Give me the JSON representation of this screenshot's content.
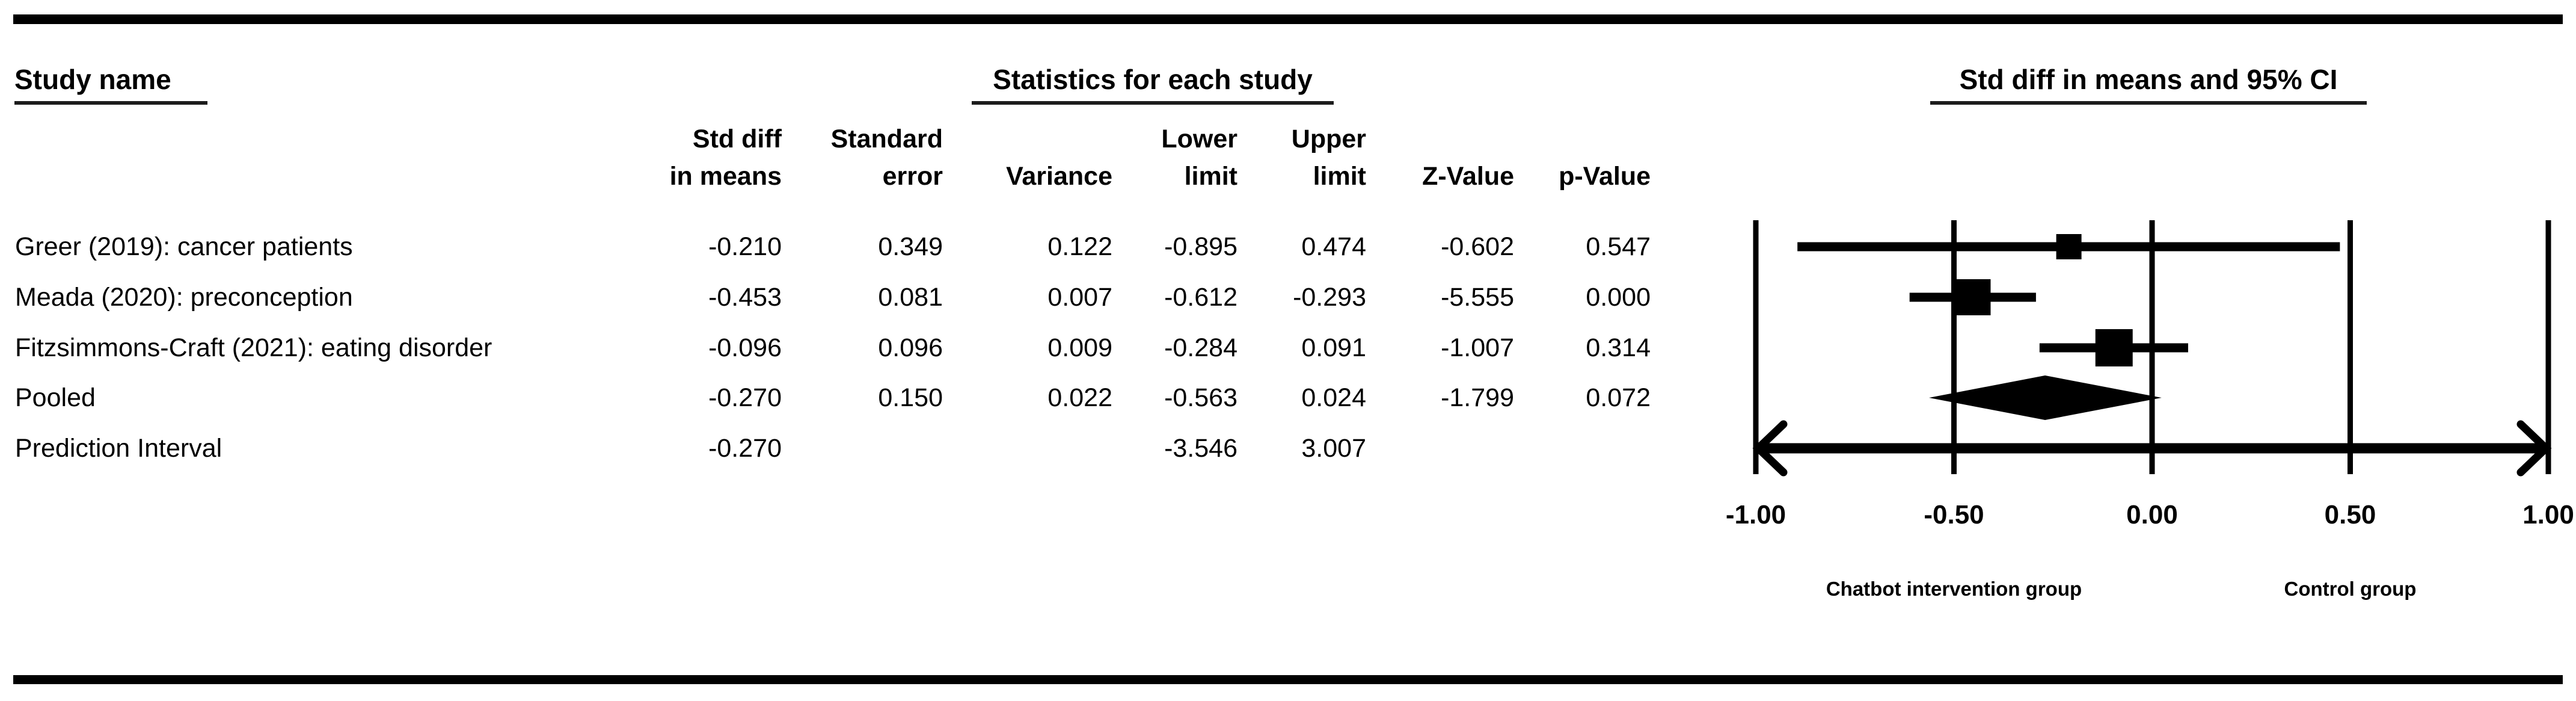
{
  "table": {
    "study_header": "Study name",
    "stats_header": "Statistics for each study",
    "columns": [
      {
        "line1": "Std diff",
        "line2": "in means"
      },
      {
        "line1": "Standard",
        "line2": "error"
      },
      {
        "line1": "",
        "line2": "Variance"
      },
      {
        "line1": "Lower",
        "line2": "limit"
      },
      {
        "line1": "Upper",
        "line2": "limit"
      },
      {
        "line1": "",
        "line2": "Z-Value"
      },
      {
        "line1": "",
        "line2": "p-Value"
      }
    ],
    "rows": [
      {
        "name": "Greer (2019): cancer patients",
        "cells": [
          "-0.210",
          "0.349",
          "0.122",
          "-0.895",
          "0.474",
          "-0.602",
          "0.547"
        ]
      },
      {
        "name": "Meada (2020): preconception",
        "cells": [
          "-0.453",
          "0.081",
          "0.007",
          "-0.612",
          "-0.293",
          "-5.555",
          "0.000"
        ]
      },
      {
        "name": "Fitzsimmons-Craft (2021): eating disorder",
        "cells": [
          "-0.096",
          "0.096",
          "0.009",
          "-0.284",
          "0.091",
          "-1.007",
          "0.314"
        ]
      },
      {
        "name": "Pooled",
        "cells": [
          "-0.270",
          "0.150",
          "0.022",
          "-0.563",
          "0.024",
          "-1.799",
          "0.072"
        ]
      },
      {
        "name": "Prediction Interval",
        "cells": [
          "-0.270",
          "",
          "",
          "-3.546",
          "3.007",
          "",
          ""
        ]
      }
    ]
  },
  "chart_data": {
    "type": "forest",
    "title": "Std diff in means and 95% CI",
    "xlim": [
      -1.0,
      1.0
    ],
    "x_tick_labels": [
      "-1.00",
      "-0.50",
      "0.00",
      "0.50",
      "1.00"
    ],
    "x_tick_values": [
      -1.0,
      -0.5,
      0.0,
      0.5,
      1.0
    ],
    "group_labels": {
      "left": "Chatbot intervention group",
      "right": "Control group"
    },
    "rows": [
      {
        "name": "Greer (2019): cancer patients",
        "kind": "study",
        "std_diff": -0.21,
        "se": 0.349,
        "variance": 0.122,
        "lower": -0.895,
        "upper": 0.474,
        "z": -0.602,
        "p": 0.547,
        "marker_size": 42
      },
      {
        "name": "Meada (2020): preconception",
        "kind": "study",
        "std_diff": -0.453,
        "se": 0.081,
        "variance": 0.007,
        "lower": -0.612,
        "upper": -0.293,
        "z": -5.555,
        "p": 0.0,
        "marker_size": 60
      },
      {
        "name": "Fitzsimmons-Craft (2021): eating disorder",
        "kind": "study",
        "std_diff": -0.096,
        "se": 0.096,
        "variance": 0.009,
        "lower": -0.284,
        "upper": 0.091,
        "z": -1.007,
        "p": 0.314,
        "marker_size": 62
      },
      {
        "name": "Pooled",
        "kind": "pooled",
        "std_diff": -0.27,
        "se": 0.15,
        "variance": 0.022,
        "lower": -0.563,
        "upper": 0.024,
        "z": -1.799,
        "p": 0.072
      },
      {
        "name": "Prediction Interval",
        "kind": "prediction",
        "std_diff": -0.27,
        "lower": -3.546,
        "upper": 3.007
      }
    ],
    "marker_color": "#000000",
    "grid": true,
    "legend_position": "none"
  }
}
